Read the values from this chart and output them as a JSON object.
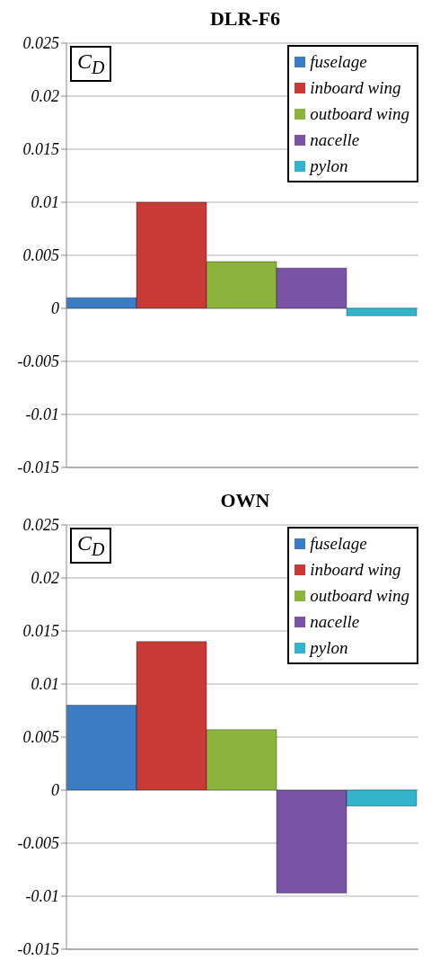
{
  "chart_data": [
    {
      "type": "bar",
      "title": "DLR-F6",
      "annotations": [
        "C$_{D}$"
      ],
      "categories": [
        null
      ],
      "series": [
        {
          "name": "fuselage",
          "color": "#3a7cc6",
          "values": [
            0.001
          ]
        },
        {
          "name": "inboard wing",
          "color": "#c83a36",
          "values": [
            0.01
          ]
        },
        {
          "name": "outboard wing",
          "color": "#8cb43c",
          "values": [
            0.0044
          ]
        },
        {
          "name": "nacelle",
          "color": "#7a52a6",
          "values": [
            0.0038
          ]
        },
        {
          "name": "pylon",
          "color": "#34b4cc",
          "values": [
            -0.0007
          ]
        }
      ],
      "ylim": [
        -0.015,
        0.025
      ],
      "yticks": [
        -0.015,
        -0.01,
        -0.005,
        0,
        0.005,
        0.01,
        0.015,
        0.02,
        0.025
      ],
      "grid": "y",
      "legend": "top right",
      "tick_labels": "y"
    },
    {
      "type": "bar",
      "title": "OWN",
      "annotations": [
        "C$_{D}$"
      ],
      "categories": [
        null
      ],
      "series": [
        {
          "name": "fuselage",
          "color": "#3a7cc6",
          "values": [
            0.008
          ]
        },
        {
          "name": "inboard wing",
          "color": "#c83a36",
          "values": [
            0.014
          ]
        },
        {
          "name": "outboard wing",
          "color": "#8cb43c",
          "values": [
            0.0057
          ]
        },
        {
          "name": "nacelle",
          "color": "#7a52a6",
          "values": [
            -0.0097
          ]
        },
        {
          "name": "pylon",
          "color": "#34b4cc",
          "values": [
            -0.0015
          ]
        }
      ],
      "ylim": [
        -0.015,
        0.025
      ],
      "yticks": [
        -0.015,
        -0.01,
        -0.005,
        0,
        0.005,
        0.01,
        0.015,
        0.02,
        0.025
      ],
      "grid": "y",
      "legend": "top right",
      "tick_labels": "y"
    }
  ]
}
